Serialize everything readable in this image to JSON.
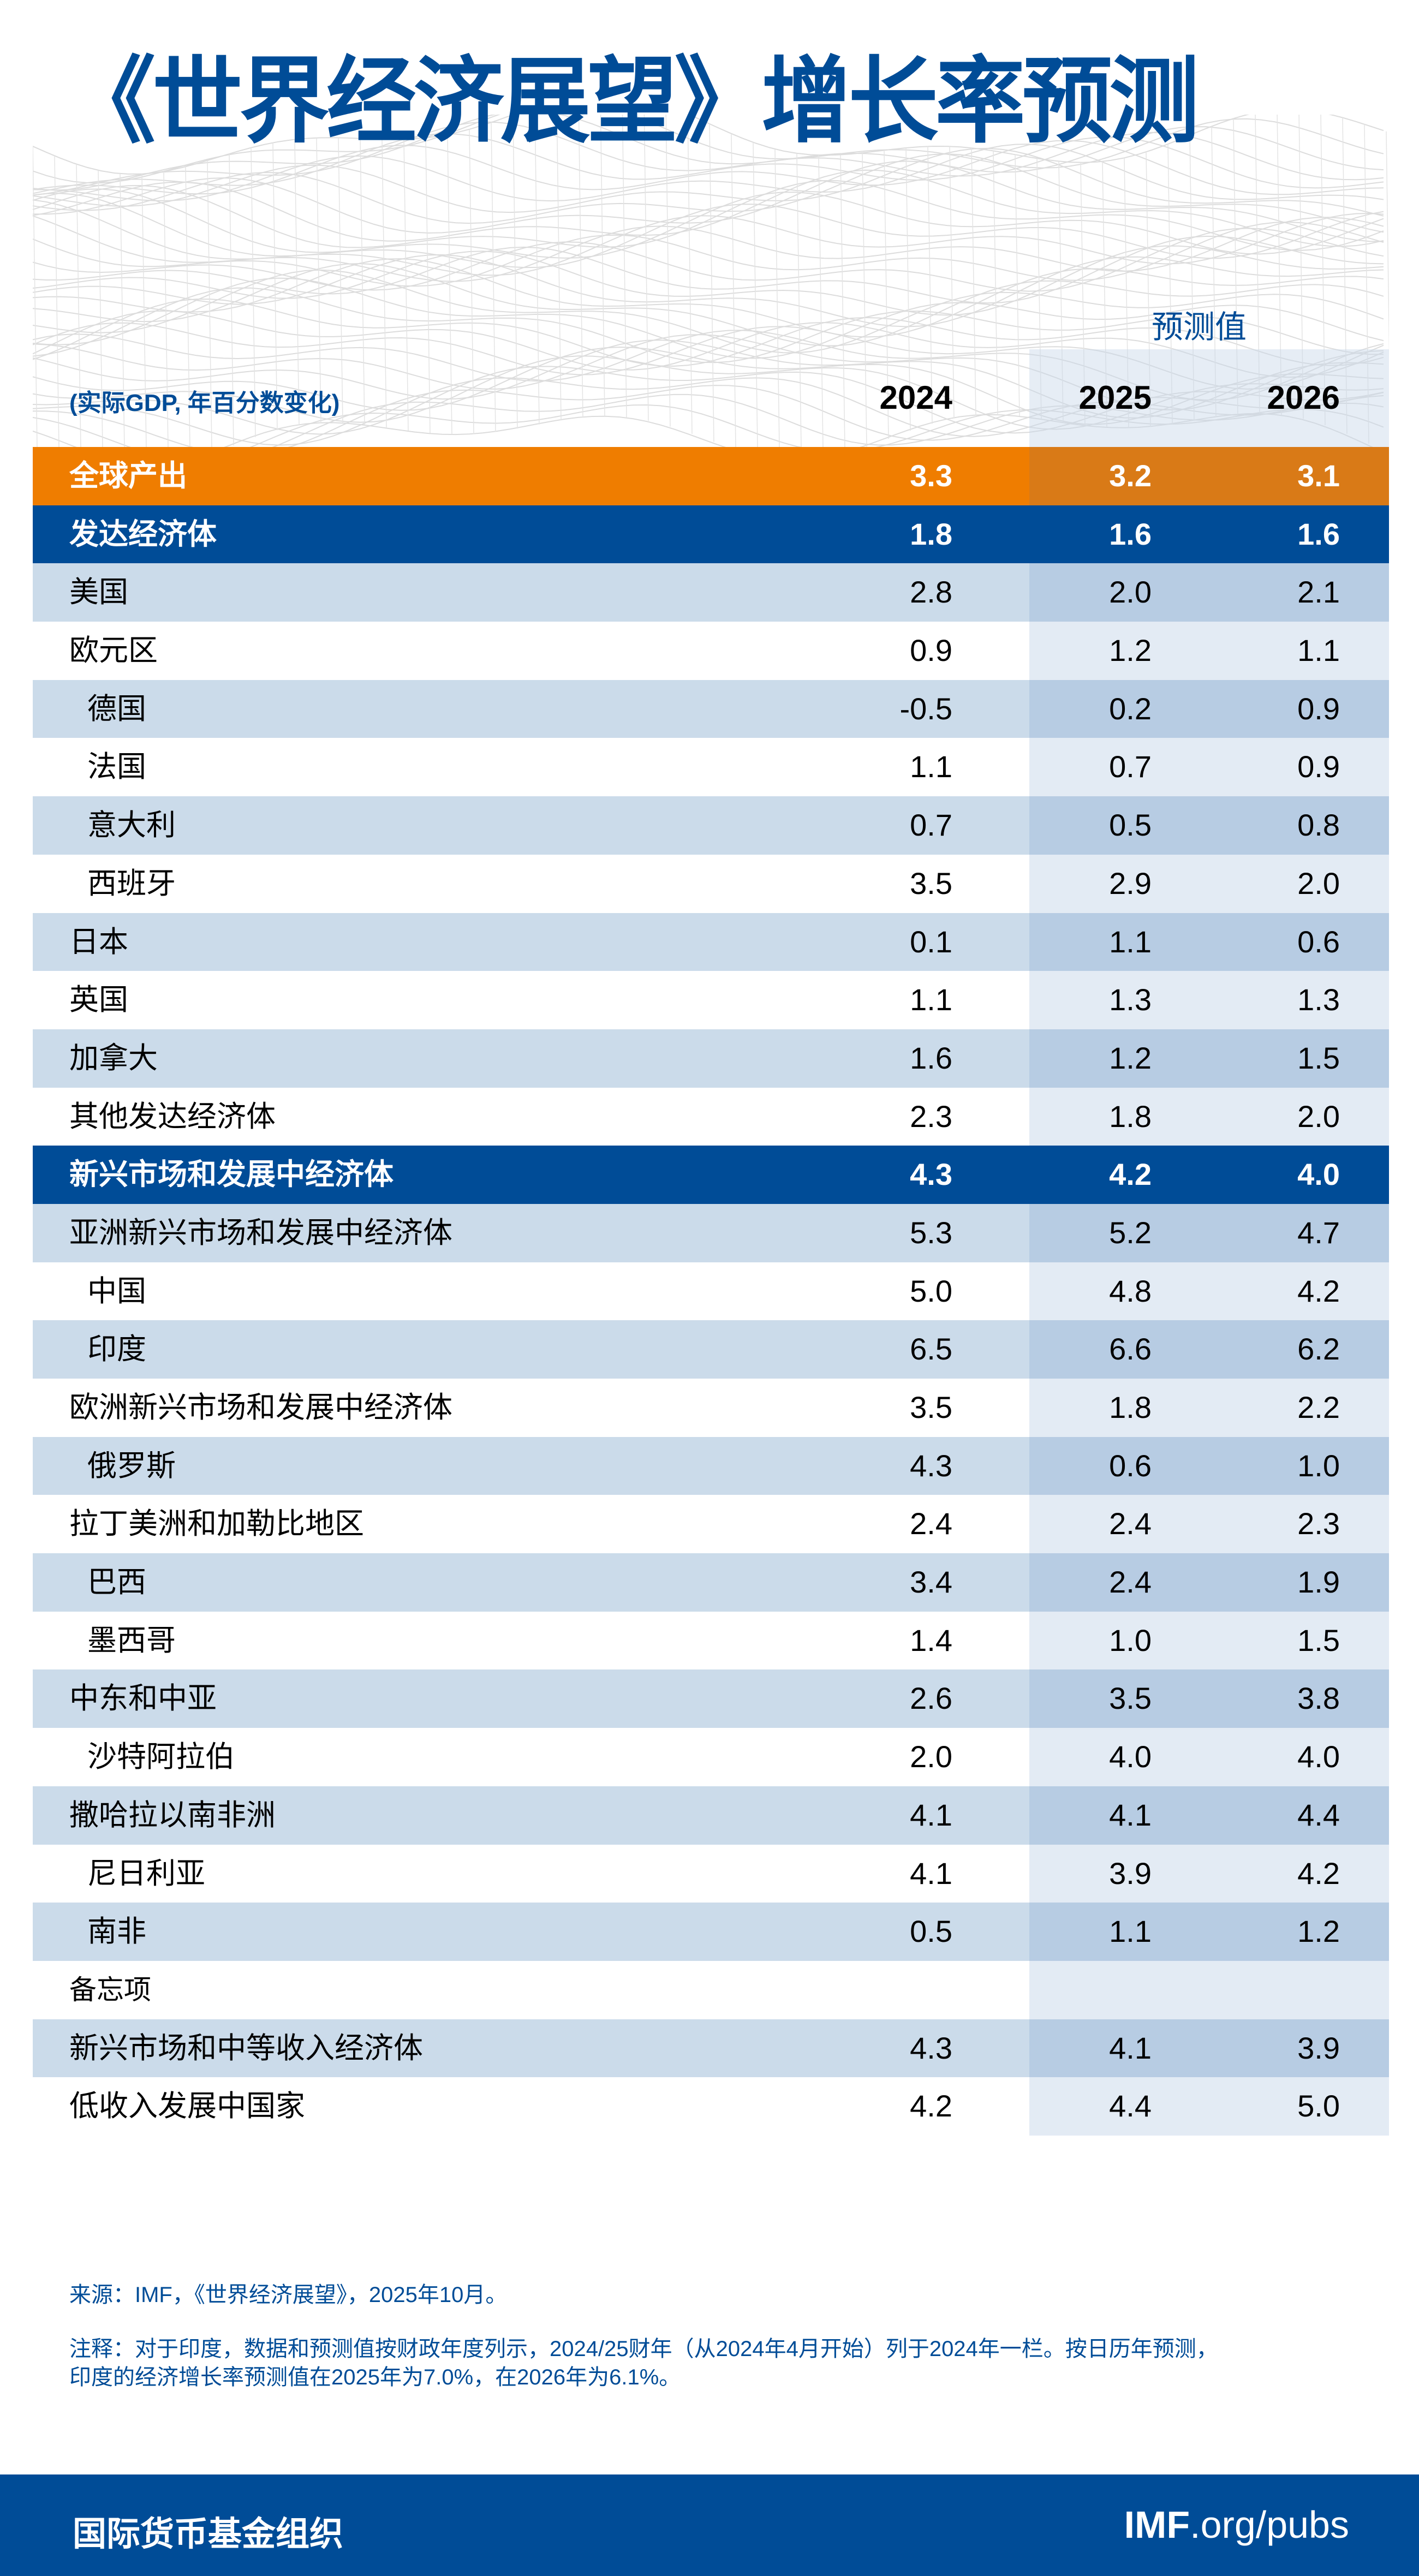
{
  "title": "《世界经济展望》增长率预测",
  "header": {
    "forecast_label": "预测值",
    "unit_note": "(实际GDP, 年百分数变化)",
    "years": [
      "2024",
      "2025",
      "2026"
    ]
  },
  "colors": {
    "brand_blue": "#004C97",
    "world_orange": "#EF7D00",
    "row_shade": "#CBDBEA",
    "forecast_shade": "#B7CCE3",
    "forecast_light": "#E3EBF4"
  },
  "rows": [
    {
      "label": "全球产出",
      "type": "world",
      "values": [
        "3.3",
        "3.2",
        "3.1"
      ]
    },
    {
      "label": "发达经济体",
      "type": "region",
      "values": [
        "1.8",
        "1.6",
        "1.6"
      ]
    },
    {
      "label": "美国",
      "type": "light",
      "values": [
        "2.8",
        "2.0",
        "2.1"
      ]
    },
    {
      "label": "欧元区",
      "type": "plain",
      "values": [
        "0.9",
        "1.2",
        "1.1"
      ]
    },
    {
      "label": "德国",
      "type": "light",
      "indent": true,
      "values": [
        "-0.5",
        "0.2",
        "0.9"
      ]
    },
    {
      "label": "法国",
      "type": "plain",
      "indent": true,
      "values": [
        "1.1",
        "0.7",
        "0.9"
      ]
    },
    {
      "label": "意大利",
      "type": "light",
      "indent": true,
      "values": [
        "0.7",
        "0.5",
        "0.8"
      ]
    },
    {
      "label": "西班牙",
      "type": "plain",
      "indent": true,
      "values": [
        "3.5",
        "2.9",
        "2.0"
      ]
    },
    {
      "label": "日本",
      "type": "light",
      "values": [
        "0.1",
        "1.1",
        "0.6"
      ]
    },
    {
      "label": "英国",
      "type": "plain",
      "values": [
        "1.1",
        "1.3",
        "1.3"
      ]
    },
    {
      "label": "加拿大",
      "type": "light",
      "values": [
        "1.6",
        "1.2",
        "1.5"
      ]
    },
    {
      "label": "其他发达经济体",
      "type": "plain",
      "values": [
        "2.3",
        "1.8",
        "2.0"
      ]
    },
    {
      "label": "新兴市场和发展中经济体",
      "type": "region",
      "values": [
        "4.3",
        "4.2",
        "4.0"
      ]
    },
    {
      "label": "亚洲新兴市场和发展中经济体",
      "type": "light",
      "values": [
        "5.3",
        "5.2",
        "4.7"
      ]
    },
    {
      "label": "中国",
      "type": "plain",
      "indent": true,
      "values": [
        "5.0",
        "4.8",
        "4.2"
      ]
    },
    {
      "label": "印度",
      "type": "light",
      "indent": true,
      "values": [
        "6.5",
        "6.6",
        "6.2"
      ]
    },
    {
      "label": "欧洲新兴市场和发展中经济体",
      "type": "plain",
      "values": [
        "3.5",
        "1.8",
        "2.2"
      ]
    },
    {
      "label": "俄罗斯",
      "type": "light",
      "indent": true,
      "values": [
        "4.3",
        "0.6",
        "1.0"
      ]
    },
    {
      "label": "拉丁美洲和加勒比地区",
      "type": "plain",
      "values": [
        "2.4",
        "2.4",
        "2.3"
      ]
    },
    {
      "label": "巴西",
      "type": "light",
      "indent": true,
      "values": [
        "3.4",
        "2.4",
        "1.9"
      ]
    },
    {
      "label": "墨西哥",
      "type": "plain",
      "indent": true,
      "values": [
        "1.4",
        "1.0",
        "1.5"
      ]
    },
    {
      "label": "中东和中亚",
      "type": "light",
      "values": [
        "2.6",
        "3.5",
        "3.8"
      ]
    },
    {
      "label": "沙特阿拉伯",
      "type": "plain",
      "indent": true,
      "values": [
        "2.0",
        "4.0",
        "4.0"
      ]
    },
    {
      "label": "撒哈拉以南非洲",
      "type": "light",
      "values": [
        "4.1",
        "4.1",
        "4.4"
      ]
    },
    {
      "label": "尼日利亚",
      "type": "plain",
      "indent": true,
      "values": [
        "4.1",
        "3.9",
        "4.2"
      ]
    },
    {
      "label": "南非",
      "type": "light",
      "indent": true,
      "values": [
        "0.5",
        "1.1",
        "1.2"
      ]
    },
    {
      "label": "备忘项",
      "type": "plain memo",
      "values": [
        "",
        "",
        ""
      ]
    },
    {
      "label": "新兴市场和中等收入经济体",
      "type": "light",
      "values": [
        "4.3",
        "4.1",
        "3.9"
      ]
    },
    {
      "label": "低收入发展中国家",
      "type": "plain",
      "values": [
        "4.2",
        "4.4",
        "5.0"
      ]
    }
  ],
  "source": "来源：IMF，《世界经济展望》，2025年10月。",
  "note_line1": "注释：对于印度，数据和预测值按财政年度列示，2024/25财年（从2024年4月开始）列于2024年一栏。按日历年预测，",
  "note_line2": "印度的经济增长率预测值在2025年为7.0%，在2026年为6.1%。",
  "footer": {
    "org": "国际货币基金组织",
    "site_bold": "IMF",
    "site_rest": ".org/pubs"
  }
}
